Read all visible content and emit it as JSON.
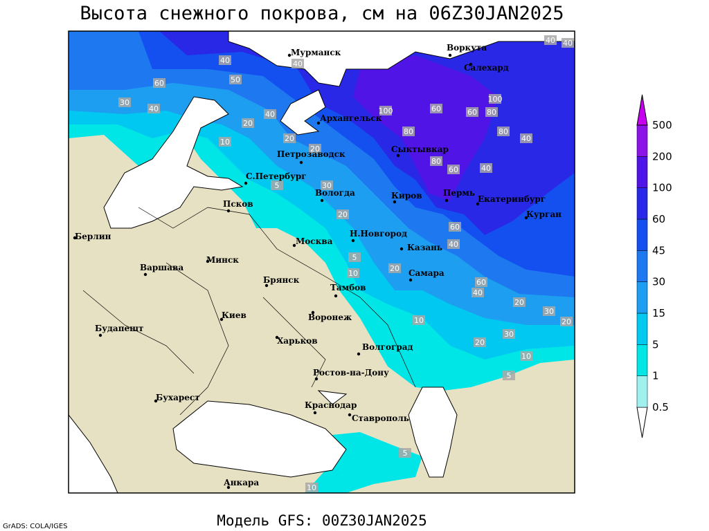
{
  "header": {
    "title": "Высота снежного покрова, см на 06Z30JAN2025"
  },
  "footer": {
    "model": "Модель GFS: 00Z30JAN2025",
    "credit": "GrADS: COLA/IGES"
  },
  "legend": {
    "levels": [
      0.5,
      1,
      5,
      15,
      30,
      45,
      60,
      100,
      200,
      500
    ],
    "colors": [
      "#ffffff",
      "#a0f0f0",
      "#00e6e6",
      "#00c8f0",
      "#1e9ef0",
      "#1e78f0",
      "#1450f0",
      "#2828e6",
      "#5014e6",
      "#8c14e6",
      "#c800f0"
    ]
  },
  "cities": [
    "Мурманск",
    "Воркута",
    "Салехард",
    "Архангельск",
    "Сыктывкар",
    "Петрозаводск",
    "С.Петербург",
    "Вологда",
    "Киров",
    "Пермь",
    "Екатеринбург",
    "Курган",
    "Псков",
    "Берлин",
    "Н.Новгород",
    "Москва",
    "Казань",
    "Минск",
    "Варшава",
    "Брянск",
    "Тамбов",
    "Самара",
    "Киев",
    "Воронеж",
    "Будапешт",
    "Харьков",
    "Волгоград",
    "Ростов-на-Дону",
    "Бухарест",
    "Краснодар",
    "Ставрополь",
    "Анкара"
  ],
  "contour_labels": [
    40,
    40,
    40,
    40,
    60,
    50,
    30,
    40,
    20,
    40,
    10,
    20,
    30,
    100,
    80,
    60,
    100,
    80,
    80,
    40,
    60,
    80,
    60,
    40,
    20,
    20,
    40,
    60,
    20,
    30,
    20,
    10,
    20,
    30,
    10,
    5,
    5,
    5,
    5,
    10,
    40,
    60,
    10,
    20
  ]
}
